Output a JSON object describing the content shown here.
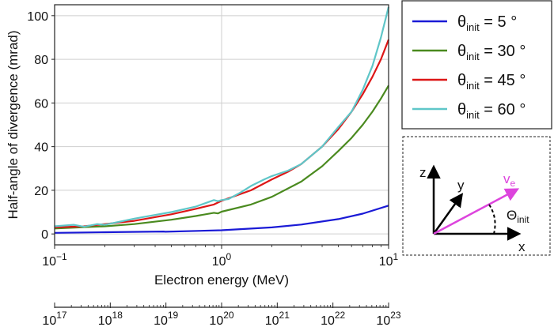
{
  "chart_data": {
    "type": "line",
    "xlabel": "Electron energy (MeV)",
    "ylabel": "Half-angle of divergence (mrad)",
    "xscale": "log",
    "xlim": [
      0.1,
      10
    ],
    "ylim": [
      -5,
      105
    ],
    "grid": true,
    "legend_placement": "outside-right",
    "x_ticks": [
      {
        "value": 0.1,
        "base": "10",
        "exp": "−1"
      },
      {
        "value": 1,
        "base": "10",
        "exp": "0"
      },
      {
        "value": 10,
        "base": "10",
        "exp": "1"
      }
    ],
    "y_ticks": [
      0,
      20,
      40,
      60,
      80,
      100
    ],
    "secondary_x_ticks": [
      {
        "base": "10",
        "exp": "17"
      },
      {
        "base": "10",
        "exp": "18"
      },
      {
        "base": "10",
        "exp": "19"
      },
      {
        "base": "10",
        "exp": "20"
      },
      {
        "base": "10",
        "exp": "21"
      },
      {
        "base": "10",
        "exp": "22"
      },
      {
        "base": "10",
        "exp": "23"
      }
    ],
    "series": [
      {
        "name": "θinit = 5 °",
        "legend": {
          "sym": "θ",
          "sub": "init",
          "rest": " = 5 °"
        },
        "color": "#1a1ad6",
        "points": [
          [
            0.1,
            0.5
          ],
          [
            0.2,
            0.8
          ],
          [
            0.45,
            1.1
          ],
          [
            0.46,
            1.0
          ],
          [
            1,
            1.7
          ],
          [
            2,
            3.0
          ],
          [
            3,
            4.3
          ],
          [
            5,
            6.8
          ],
          [
            7,
            9.3
          ],
          [
            10,
            13
          ]
        ]
      },
      {
        "name": "θinit = 30 °",
        "legend": {
          "sym": "θ",
          "sub": "init",
          "rest": " = 30 °"
        },
        "color": "#4a8a1f",
        "points": [
          [
            0.1,
            2.5
          ],
          [
            0.2,
            3.5
          ],
          [
            0.3,
            4.5
          ],
          [
            0.5,
            6.5
          ],
          [
            0.7,
            8.2
          ],
          [
            0.9,
            9.7
          ],
          [
            0.95,
            9.4
          ],
          [
            1,
            10.2
          ],
          [
            1.5,
            13.5
          ],
          [
            2,
            17
          ],
          [
            3,
            24
          ],
          [
            4,
            31
          ],
          [
            5,
            38
          ],
          [
            6,
            44
          ],
          [
            7,
            50
          ],
          [
            8,
            56
          ],
          [
            9,
            62
          ],
          [
            10,
            68
          ]
        ]
      },
      {
        "name": "θinit = 45 °",
        "legend": {
          "sym": "θ",
          "sub": "init",
          "rest": " = 45 °"
        },
        "color": "#dd1616",
        "points": [
          [
            0.1,
            3
          ],
          [
            0.15,
            3.5
          ],
          [
            0.2,
            4.5
          ],
          [
            0.3,
            6
          ],
          [
            0.5,
            9
          ],
          [
            0.7,
            11.5
          ],
          [
            0.9,
            13.5
          ],
          [
            1,
            15.2
          ],
          [
            1.5,
            20
          ],
          [
            2,
            25
          ],
          [
            2.5,
            28.5
          ],
          [
            3,
            32
          ],
          [
            4,
            40
          ],
          [
            5,
            48
          ],
          [
            6,
            56
          ],
          [
            7,
            64
          ],
          [
            8,
            72
          ],
          [
            9,
            80
          ],
          [
            10,
            89
          ]
        ]
      },
      {
        "name": "θinit = 60 °",
        "legend": {
          "sym": "θ",
          "sub": "init",
          "rest": " = 60 °"
        },
        "color": "#5fc6c8",
        "points": [
          [
            0.1,
            3.5
          ],
          [
            0.13,
            4.2
          ],
          [
            0.15,
            3.3
          ],
          [
            0.18,
            4.5
          ],
          [
            0.2,
            4.2
          ],
          [
            0.3,
            7
          ],
          [
            0.5,
            10
          ],
          [
            0.7,
            12.5
          ],
          [
            0.9,
            15.5
          ],
          [
            0.95,
            15
          ],
          [
            1,
            15.5
          ],
          [
            1.1,
            16
          ],
          [
            1.3,
            19
          ],
          [
            1.5,
            22
          ],
          [
            1.8,
            25
          ],
          [
            2,
            26.5
          ],
          [
            2.5,
            29
          ],
          [
            3,
            32
          ],
          [
            4,
            40
          ],
          [
            5,
            49
          ],
          [
            6,
            56
          ],
          [
            7,
            66
          ],
          [
            8,
            77
          ],
          [
            9,
            90
          ],
          [
            10,
            104
          ]
        ]
      }
    ]
  },
  "inset": {
    "axis_z": "z",
    "axis_y": "y",
    "axis_x": "x",
    "ve": {
      "sym": "v",
      "sub": "e"
    },
    "theta": {
      "sym": "Θ",
      "sub": "init"
    },
    "ve_color": "#dd44dd"
  }
}
